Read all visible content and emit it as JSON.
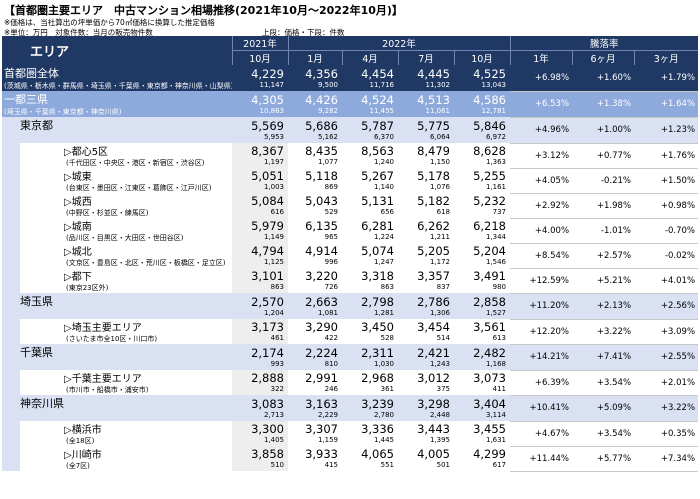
{
  "title": "【首都圏主要エリア　中古マンション相場推移(2021年10月～2022年10月)】",
  "notes": [
    "※価格は、当社算出の坪単価から70㎡価格に換算した推定価格",
    "※単位：万円　対象件数：当月の販売物件数"
  ],
  "legend": "上段：価格・下段：件数",
  "header": {
    "area": "エリア",
    "year2021": "2021年",
    "year2022": "2022年",
    "change": "騰落率",
    "months": [
      "10月",
      "1月",
      "4月",
      "7月",
      "10月"
    ],
    "periods": [
      "1年",
      "6ヶ月",
      "3ヶ月"
    ]
  },
  "rows": [
    {
      "level": 0,
      "name": "首都圏全体",
      "sub": "(茨城県・栃木県・群馬県・埼玉県・千葉県・東京都・神奈川県・山梨県)",
      "prices": [
        "4,229",
        "4,356",
        "4,454",
        "4,445",
        "4,525"
      ],
      "counts": [
        "11,147",
        "9,500",
        "11,716",
        "11,302",
        "13,043"
      ],
      "pct": [
        "+6.98%",
        "+1.60%",
        "+1.79%"
      ]
    },
    {
      "level": 1,
      "name": "一都三県",
      "sub": "(埼玉県・千葉県・東京都・神奈川県)",
      "prices": [
        "4,305",
        "4,426",
        "4,524",
        "4,513",
        "4,586"
      ],
      "counts": [
        "10,863",
        "9,282",
        "11,455",
        "11,061",
        "12,781"
      ],
      "pct": [
        "+6.53%",
        "+1.38%",
        "+1.64%"
      ]
    },
    {
      "level": 2,
      "name": "東京都",
      "sub": "",
      "prices": [
        "5,569",
        "5,686",
        "5,787",
        "5,775",
        "5,846"
      ],
      "counts": [
        "5,953",
        "5,162",
        "6,370",
        "6,064",
        "6,972"
      ],
      "pct": [
        "+4.96%",
        "+1.00%",
        "+1.23%"
      ]
    },
    {
      "level": 3,
      "name": "▷都心5区",
      "sub": "(千代田区・中央区・港区・新宿区・渋谷区)",
      "prices": [
        "8,367",
        "8,435",
        "8,563",
        "8,479",
        "8,628"
      ],
      "counts": [
        "1,197",
        "1,077",
        "1,240",
        "1,150",
        "1,363"
      ],
      "pct": [
        "+3.12%",
        "+0.77%",
        "+1.76%"
      ]
    },
    {
      "level": 3,
      "name": "▷城東",
      "sub": "(台東区・墨田区・江東区・葛飾区・江戸川区)",
      "prices": [
        "5,051",
        "5,118",
        "5,267",
        "5,178",
        "5,255"
      ],
      "counts": [
        "1,003",
        "869",
        "1,140",
        "1,076",
        "1,161"
      ],
      "pct": [
        "+4.05%",
        "-0.21%",
        "+1.50%"
      ]
    },
    {
      "level": 3,
      "name": "▷城西",
      "sub": "(中野区・杉並区・練馬区)",
      "prices": [
        "5,084",
        "5,043",
        "5,131",
        "5,182",
        "5,232"
      ],
      "counts": [
        "616",
        "529",
        "656",
        "618",
        "737"
      ],
      "pct": [
        "+2.92%",
        "+1.98%",
        "+0.98%"
      ]
    },
    {
      "level": 3,
      "name": "▷城南",
      "sub": "(品川区・目黒区・大田区・世田谷区)",
      "prices": [
        "5,979",
        "6,135",
        "6,281",
        "6,262",
        "6,218"
      ],
      "counts": [
        "1,149",
        "965",
        "1,224",
        "1,211",
        "1,344"
      ],
      "pct": [
        "+4.00%",
        "-1.01%",
        "-0.70%"
      ]
    },
    {
      "level": 3,
      "name": "▷城北",
      "sub": "(文京区・豊島区・北区・荒川区・板橋区・足立区)",
      "prices": [
        "4,794",
        "4,914",
        "5,074",
        "5,205",
        "5,204"
      ],
      "counts": [
        "1,125",
        "996",
        "1,247",
        "1,172",
        "1,546"
      ],
      "pct": [
        "+8.54%",
        "+2.57%",
        "-0.02%"
      ]
    },
    {
      "level": 3,
      "name": "▷都下",
      "sub": "(東京23区外)",
      "prices": [
        "3,101",
        "3,220",
        "3,318",
        "3,357",
        "3,491"
      ],
      "counts": [
        "863",
        "726",
        "863",
        "837",
        "980"
      ],
      "pct": [
        "+12.59%",
        "+5.21%",
        "+4.01%"
      ]
    },
    {
      "level": 2,
      "name": "埼玉県",
      "sub": "",
      "prices": [
        "2,570",
        "2,663",
        "2,798",
        "2,786",
        "2,858"
      ],
      "counts": [
        "1,204",
        "1,081",
        "1,281",
        "1,306",
        "1,527"
      ],
      "pct": [
        "+11.20%",
        "+2.13%",
        "+2.56%"
      ]
    },
    {
      "level": 3,
      "name": "▷埼玉主要エリア",
      "sub": "(さいたま市全10区・川口市)",
      "prices": [
        "3,173",
        "3,290",
        "3,450",
        "3,454",
        "3,561"
      ],
      "counts": [
        "461",
        "422",
        "528",
        "514",
        "613"
      ],
      "pct": [
        "+12.20%",
        "+3.22%",
        "+3.09%"
      ]
    },
    {
      "level": 2,
      "name": "千葉県",
      "sub": "",
      "prices": [
        "2,174",
        "2,224",
        "2,311",
        "2,421",
        "2,482"
      ],
      "counts": [
        "993",
        "810",
        "1,030",
        "1,243",
        "1,168"
      ],
      "pct": [
        "+14.21%",
        "+7.41%",
        "+2.55%"
      ]
    },
    {
      "level": 3,
      "name": "▷千葉主要エリア",
      "sub": "(市川市・船橋市・浦安市)",
      "prices": [
        "2,888",
        "2,991",
        "2,968",
        "3,012",
        "3,073"
      ],
      "counts": [
        "322",
        "246",
        "361",
        "375",
        "411"
      ],
      "pct": [
        "+6.39%",
        "+3.54%",
        "+2.01%"
      ]
    },
    {
      "level": 2,
      "name": "神奈川県",
      "sub": "",
      "prices": [
        "3,083",
        "3,163",
        "3,239",
        "3,298",
        "3,404"
      ],
      "counts": [
        "2,713",
        "2,229",
        "2,780",
        "2,448",
        "3,114"
      ],
      "pct": [
        "+10.41%",
        "+5.09%",
        "+3.22%"
      ]
    },
    {
      "level": 3,
      "name": "▷横浜市",
      "sub": "(全18区)",
      "prices": [
        "3,300",
        "3,307",
        "3,336",
        "3,443",
        "3,455"
      ],
      "counts": [
        "1,405",
        "1,159",
        "1,445",
        "1,395",
        "1,631"
      ],
      "pct": [
        "+4.67%",
        "+3.54%",
        "+0.35%"
      ]
    },
    {
      "level": 3,
      "name": "▷川崎市",
      "sub": "(全7区)",
      "prices": [
        "3,858",
        "3,933",
        "4,065",
        "4,005",
        "4,299"
      ],
      "counts": [
        "510",
        "415",
        "551",
        "501",
        "617"
      ],
      "pct": [
        "+11.44%",
        "+5.77%",
        "+7.34%"
      ]
    }
  ]
}
